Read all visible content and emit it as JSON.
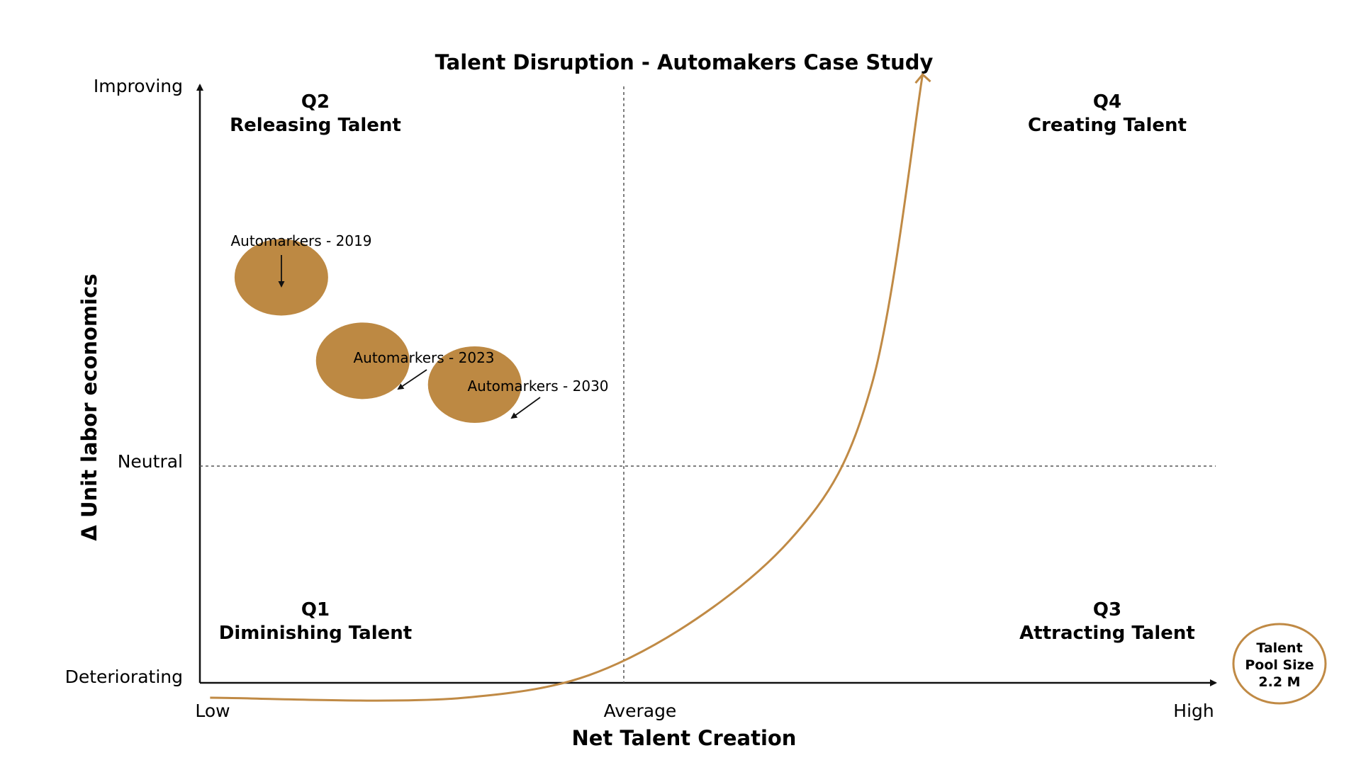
{
  "chart_data": {
    "type": "scatter",
    "title": "Talent Disruption - Automakers Case Study",
    "xlabel": "Net Talent Creation",
    "ylabel": "Δ Unit labor economics",
    "x_ticks": [
      "Low",
      "Average",
      "High"
    ],
    "y_ticks": [
      "Deteriorating",
      "Neutral",
      "Improving"
    ],
    "xlim": [
      0,
      1
    ],
    "ylim": [
      -1,
      1
    ],
    "grid": false,
    "quadrants": [
      {
        "id": "Q1",
        "name": "Diminishing Talent",
        "position": "bottom-left"
      },
      {
        "id": "Q2",
        "name": "Releasing Talent",
        "position": "top-left"
      },
      {
        "id": "Q3",
        "name": "Attracting Talent",
        "position": "bottom-right"
      },
      {
        "id": "Q4",
        "name": "Creating Talent",
        "position": "top-right"
      }
    ],
    "points": [
      {
        "label": "Automarkers - 2019",
        "x": 0.08,
        "y": 0.36
      },
      {
        "label": "Automarkers - 2023",
        "x": 0.16,
        "y": 0.08
      },
      {
        "label": "Automarkers - 2030",
        "x": 0.27,
        "y": 0.0
      }
    ],
    "trend_curve": {
      "x": [
        0.01,
        0.26,
        0.42,
        0.58,
        0.66,
        0.71
      ],
      "y": [
        -1.05,
        -1.05,
        -0.92,
        -0.52,
        -0.0,
        1.04
      ]
    },
    "legend": {
      "position": "bottom-right",
      "text": [
        "Talent",
        "Pool Size",
        "2.2 M"
      ]
    },
    "colors": {
      "bubble": "#bd8943",
      "curve": "#c08a45",
      "axis": "#111111",
      "legend_border": "#c08a45"
    }
  }
}
